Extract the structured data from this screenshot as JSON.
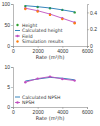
{
  "chart_data": [
    {
      "type": "line",
      "x_label": "Rate (m³/h)",
      "x": [
        1000,
        2000,
        3000,
        4000,
        5000
      ],
      "xlim": [
        0,
        6000
      ],
      "xticks": [
        0,
        2000,
        4000,
        6000
      ],
      "ylim": [
        0,
        100
      ],
      "yticks": [
        0,
        50,
        100
      ],
      "y2lim": [
        0,
        0.5
      ],
      "y2ticks": [
        0,
        0.2,
        0.4
      ],
      "legend": "lower left",
      "series": [
        {
          "name": "Height",
          "color": "#2ca02c",
          "type": "scatter",
          "marker": "circle",
          "values": [
            95,
            93,
            90,
            86,
            80
          ]
        },
        {
          "name": "Calculated height",
          "color": "#1f77b4",
          "type": "line",
          "line_style": "solid",
          "values": [
            96,
            93.5,
            90.5,
            86,
            81
          ]
        },
        {
          "name": "Field",
          "color": "#c050c0",
          "type": "line",
          "marker": "circle",
          "axis": "y2",
          "values": [
            0.45,
            0.42,
            0.38,
            0.33,
            0.28
          ]
        },
        {
          "name": "Simulation results",
          "color": "#ff7f0e",
          "type": "scatter",
          "marker": "circle",
          "axis": "y2",
          "values": [
            0.44,
            0.41,
            0.37,
            0.32,
            0.27
          ]
        }
      ]
    },
    {
      "type": "line",
      "x_label": "Rate (m³/h)",
      "x": [
        1000,
        2000,
        3000,
        4000,
        5000
      ],
      "xlim": [
        0,
        6000
      ],
      "xticks": [
        0,
        2000,
        4000,
        6000
      ],
      "ylim": [
        0,
        10
      ],
      "yticks": [
        0,
        5,
        10
      ],
      "legend": "lower left",
      "series": [
        {
          "name": "Calculated NPSH",
          "color": "#1f77b4",
          "type": "line",
          "line_style": "solid",
          "values": [
            6.5,
            7,
            7.4,
            7.2,
            6.8
          ]
        },
        {
          "name": "NPSH",
          "color": "#c050c0",
          "type": "line",
          "marker": "circle",
          "values": [
            6.2,
            7.1,
            7.6,
            7,
            6.6
          ]
        }
      ]
    }
  ]
}
